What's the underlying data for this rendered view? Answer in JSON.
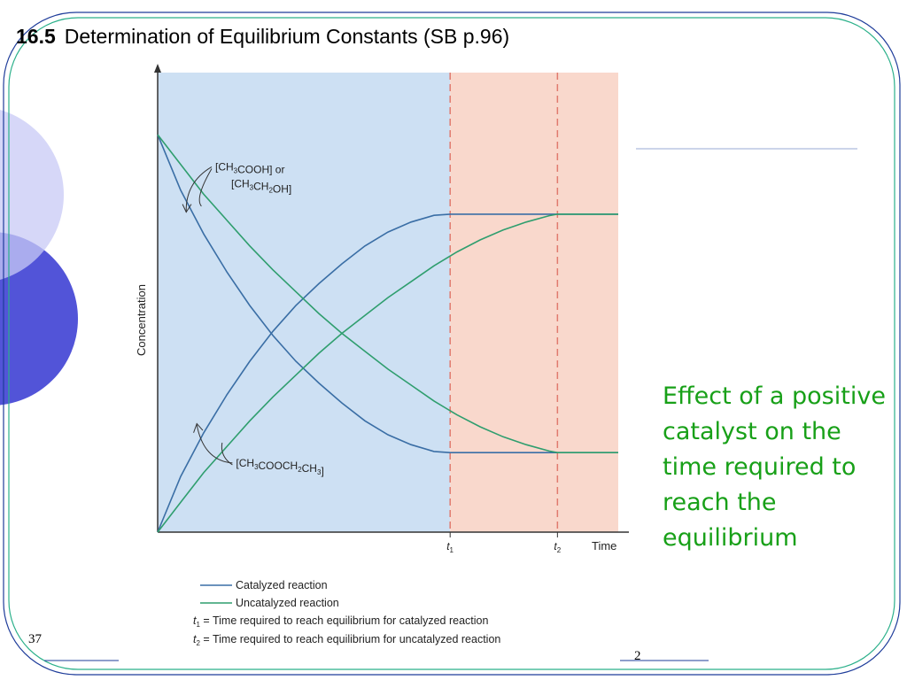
{
  "slide": {
    "section_number": "16.5",
    "title": "Determination of Equilibrium Constants (SB p.96)",
    "caption": "Effect of a positive catalyst on the time required to reach the equilibrium",
    "footer_left_number": "37",
    "footer_right_number": "2"
  },
  "colors": {
    "catalyzed": "#3a6ea5",
    "uncatalyzed": "#2f9e6e",
    "region_catalyzed_bg": "#cde0f3",
    "region_after_bg": "#f9d8cc",
    "dashed_line": "#e07a6e",
    "caption_text": "#18a018",
    "decor_dark": "#5254d8",
    "decor_light": "#c8caf5"
  },
  "chart_data": {
    "type": "line",
    "title": "",
    "xlabel": "Time",
    "ylabel": "Concentration",
    "xlim": [
      0,
      100
    ],
    "ylim": [
      0,
      100
    ],
    "x_ticks": [
      {
        "value": 63.5,
        "label": "t",
        "sub": "1"
      },
      {
        "value": 86.8,
        "label": "t",
        "sub": "2"
      }
    ],
    "series": [
      {
        "id": "cat_reactant",
        "group": "catalyzed",
        "points": [
          [
            0,
            100
          ],
          [
            5,
            86
          ],
          [
            10,
            75
          ],
          [
            15,
            65.5
          ],
          [
            20,
            57
          ],
          [
            25,
            49.5
          ],
          [
            30,
            43
          ],
          [
            35,
            37.5
          ],
          [
            40,
            32.5
          ],
          [
            45,
            28
          ],
          [
            50,
            24.5
          ],
          [
            55,
            22
          ],
          [
            60,
            20.3
          ],
          [
            63.5,
            20
          ],
          [
            70,
            20
          ],
          [
            80,
            20
          ],
          [
            90,
            20
          ],
          [
            100,
            20
          ]
        ]
      },
      {
        "id": "cat_product",
        "group": "catalyzed",
        "points": [
          [
            0,
            0
          ],
          [
            5,
            14
          ],
          [
            10,
            25
          ],
          [
            15,
            34.5
          ],
          [
            20,
            43
          ],
          [
            25,
            50.5
          ],
          [
            30,
            57
          ],
          [
            35,
            62.5
          ],
          [
            40,
            67.5
          ],
          [
            45,
            72
          ],
          [
            50,
            75.5
          ],
          [
            55,
            78
          ],
          [
            60,
            79.7
          ],
          [
            63.5,
            80
          ],
          [
            70,
            80
          ],
          [
            80,
            80
          ],
          [
            90,
            80
          ],
          [
            100,
            80
          ]
        ]
      },
      {
        "id": "uncat_reactant",
        "group": "uncatalyzed",
        "points": [
          [
            0,
            100
          ],
          [
            5,
            92.5
          ],
          [
            10,
            85
          ],
          [
            15,
            78.5
          ],
          [
            20,
            72
          ],
          [
            25,
            66
          ],
          [
            30,
            60.5
          ],
          [
            35,
            55
          ],
          [
            40,
            50
          ],
          [
            45,
            45.5
          ],
          [
            50,
            41
          ],
          [
            55,
            37
          ],
          [
            60,
            33
          ],
          [
            65,
            29.5
          ],
          [
            70,
            26.5
          ],
          [
            75,
            24
          ],
          [
            80,
            22
          ],
          [
            85,
            20.4
          ],
          [
            86.8,
            20
          ],
          [
            90,
            20
          ],
          [
            100,
            20
          ]
        ]
      },
      {
        "id": "uncat_product",
        "group": "uncatalyzed",
        "points": [
          [
            0,
            0
          ],
          [
            5,
            7.5
          ],
          [
            10,
            15
          ],
          [
            15,
            21.5
          ],
          [
            20,
            28
          ],
          [
            25,
            34
          ],
          [
            30,
            39.5
          ],
          [
            35,
            45
          ],
          [
            40,
            50
          ],
          [
            45,
            54.5
          ],
          [
            50,
            59
          ],
          [
            55,
            63
          ],
          [
            60,
            67
          ],
          [
            65,
            70.5
          ],
          [
            70,
            73.5
          ],
          [
            75,
            76
          ],
          [
            80,
            78
          ],
          [
            85,
            79.6
          ],
          [
            86.8,
            80
          ],
          [
            90,
            80
          ],
          [
            100,
            80
          ]
        ]
      }
    ],
    "annotations": [
      {
        "id": "reactant",
        "lines": [
          "[CH3COOH] or",
          "[CH3CH2OH]"
        ]
      },
      {
        "id": "product",
        "lines": [
          "[CH3COOCH2CH3]"
        ]
      }
    ],
    "legend": {
      "position": "below",
      "entries": [
        {
          "label": "Catalyzed reaction",
          "group": "catalyzed"
        },
        {
          "label": "Uncatalyzed reaction",
          "group": "uncatalyzed"
        }
      ],
      "notes": [
        {
          "sym": "t",
          "sub": "1",
          "text": " = Time required to reach equilibrium for catalyzed reaction"
        },
        {
          "sym": "t",
          "sub": "2",
          "text": " = Time required to reach equilibrium for uncatalyzed reaction"
        }
      ]
    }
  }
}
